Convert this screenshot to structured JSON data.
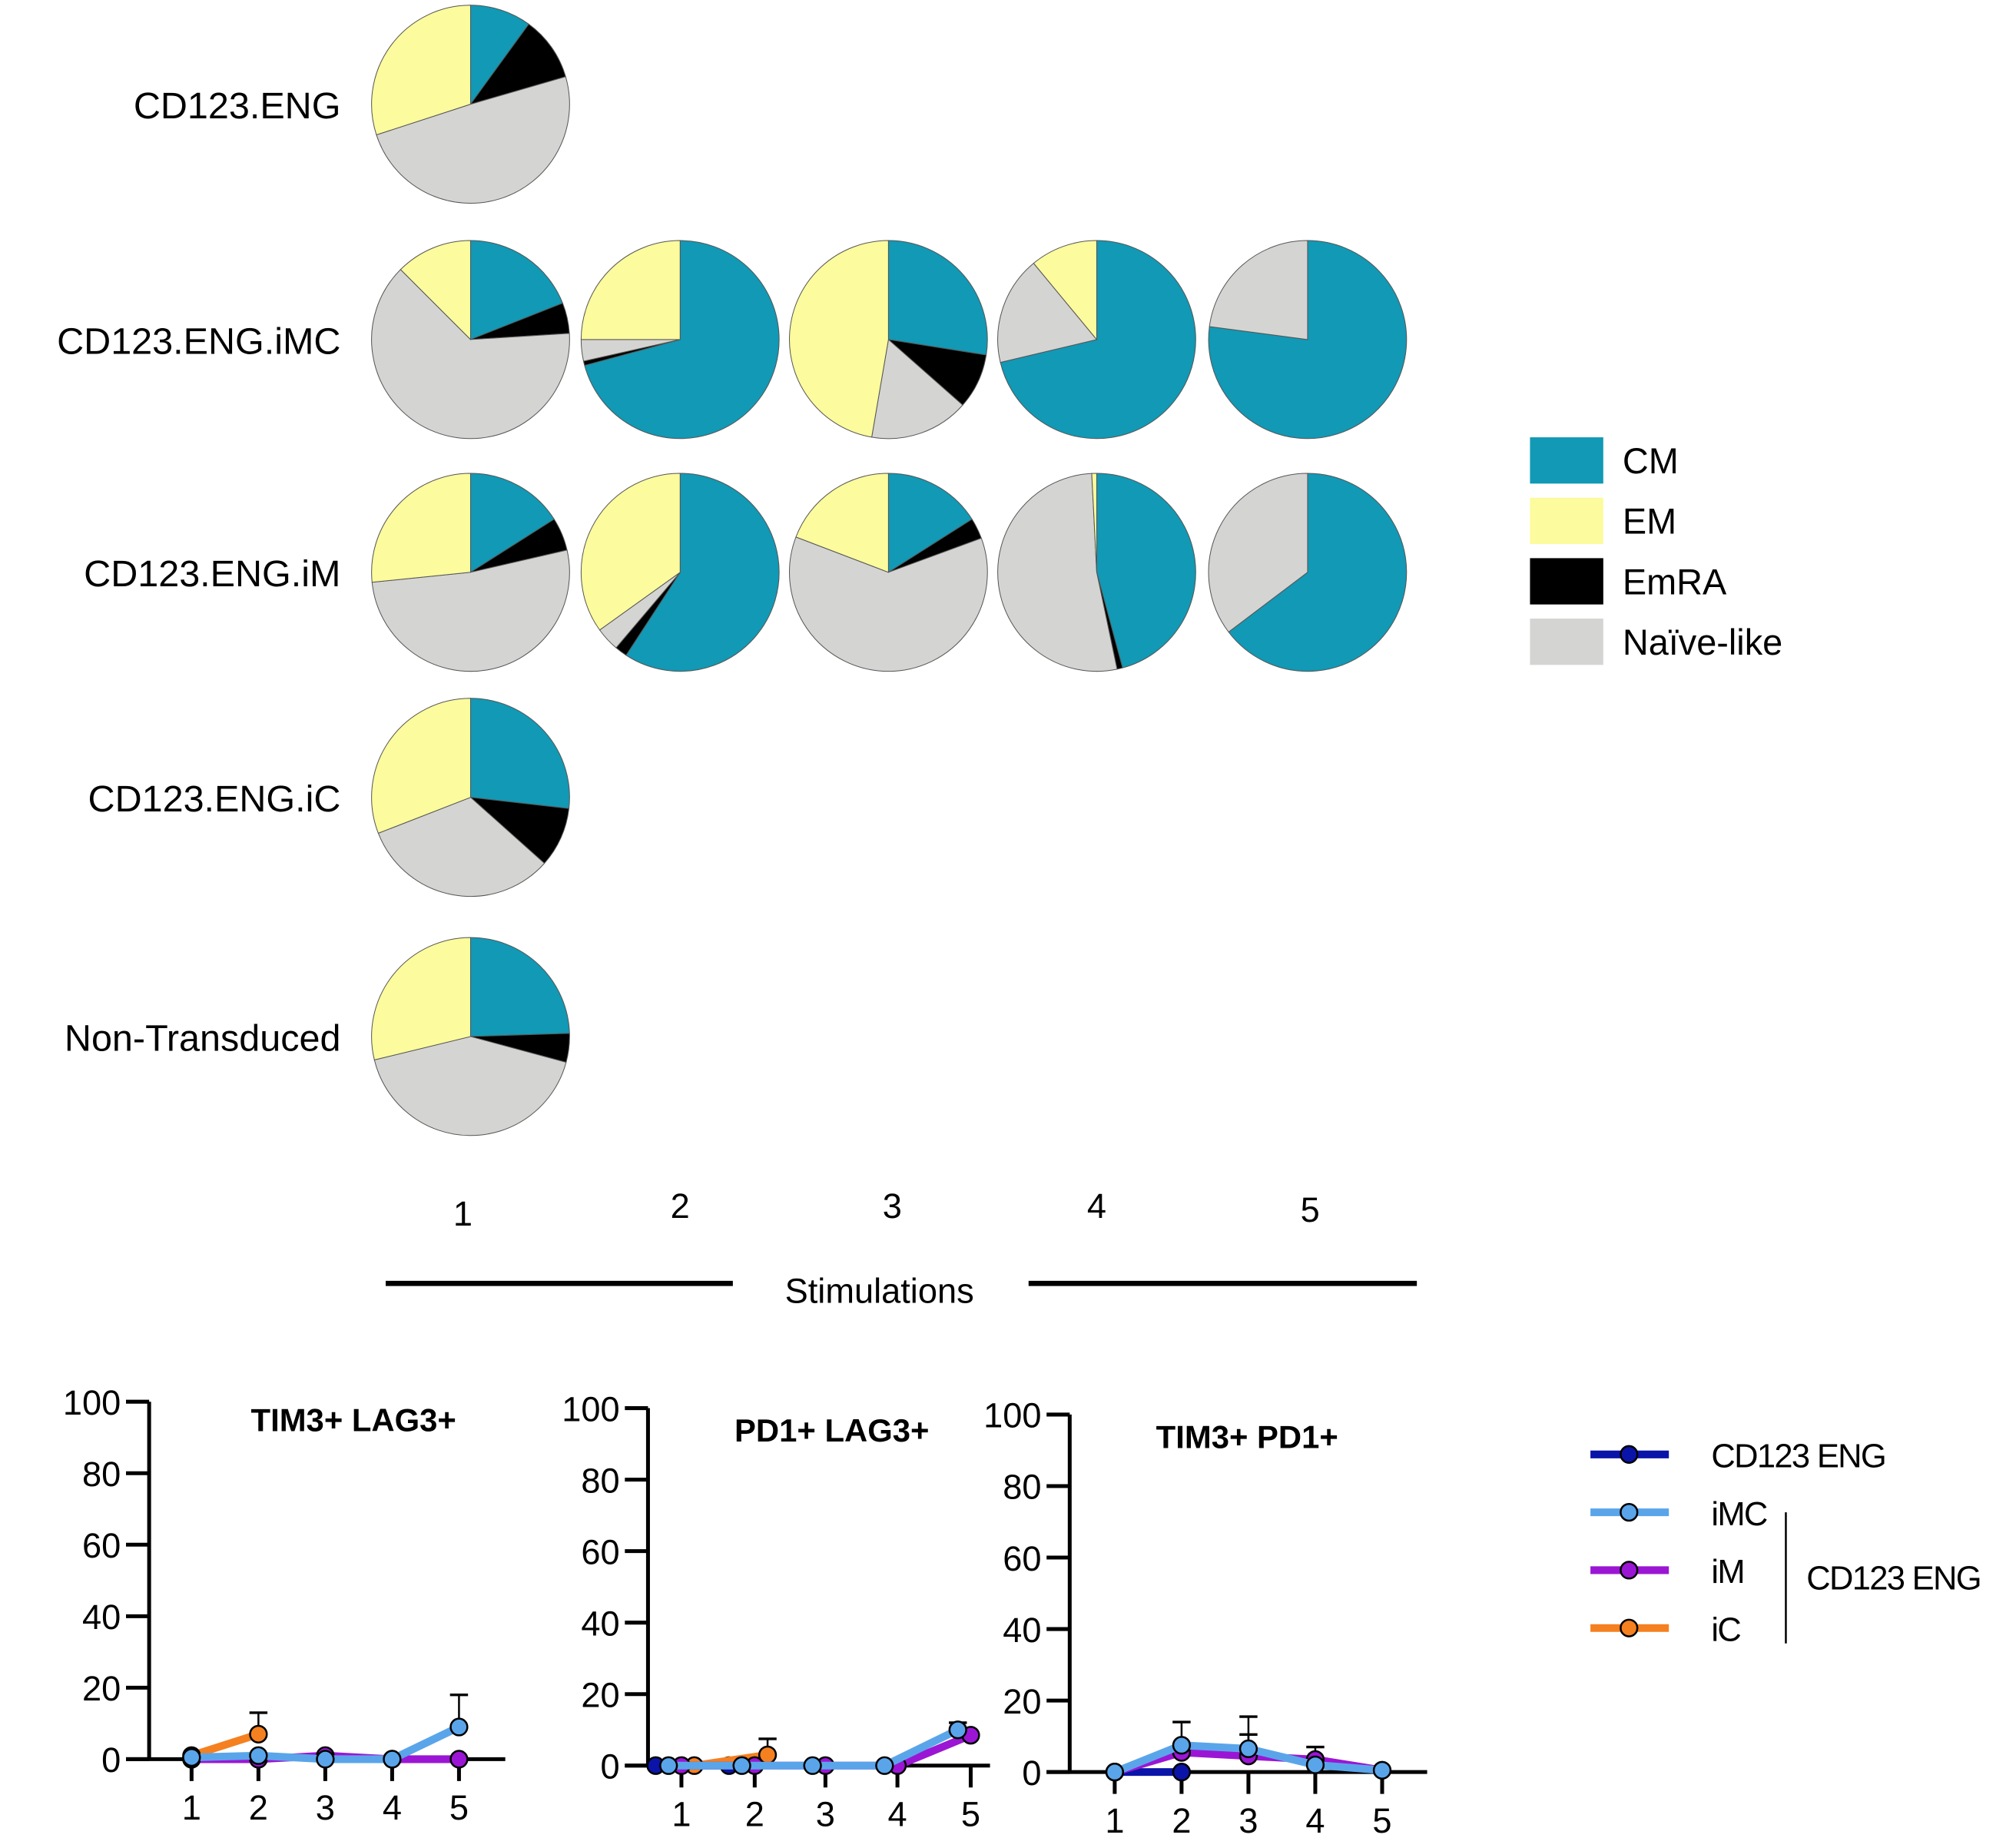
{
  "chart_data": [
    {
      "type": "pie",
      "title": "",
      "xlabel": "Stimulations",
      "stimulations": [
        "1",
        "2",
        "3",
        "4",
        "5"
      ],
      "categories": [
        "CM",
        "EmRA",
        "Naïve-like",
        "EM"
      ],
      "legend": {
        "placement": "right",
        "entries": [
          {
            "label": "CM",
            "color": "#1199b5"
          },
          {
            "label": "EM",
            "color": "#fcfb9d"
          },
          {
            "label": "EmRA",
            "color": "#000000"
          },
          {
            "label": "Naïve-like",
            "color": "#d4d4d2"
          }
        ]
      },
      "slice_colors": {
        "CM": "#1199b5",
        "EmRA": "#000000",
        "Naïve-like": "#d4d4d2",
        "EM": "#fcfb9d"
      },
      "unit": "percent",
      "rows": [
        {
          "label": "CD123.ENG",
          "pies": [
            {
              "stimulation": "1",
              "values": {
                "CM": 10,
                "EmRA": 10.5,
                "Naïve-like": 49.5,
                "EM": 30
              }
            }
          ]
        },
        {
          "label": "CD123.ENG.iMC",
          "pies": [
            {
              "stimulation": "1",
              "values": {
                "CM": 19,
                "EmRA": 5,
                "Naïve-like": 63.5,
                "EM": 12.5
              }
            },
            {
              "stimulation": "2",
              "values": {
                "CM": 70.8,
                "EmRA": 0.7,
                "Naïve-like": 3.5,
                "EM": 25
              }
            },
            {
              "stimulation": "3",
              "values": {
                "CM": 27.5,
                "EmRA": 9,
                "Naïve-like": 16.2,
                "EM": 47.3
              }
            },
            {
              "stimulation": "4",
              "values": {
                "CM": 71.3,
                "EmRA": 0,
                "Naïve-like": 17.7,
                "EM": 11
              }
            },
            {
              "stimulation": "5",
              "values": {
                "CM": 77.1,
                "EmRA": 0,
                "Naïve-like": 22.9,
                "EM": 0
              }
            }
          ]
        },
        {
          "label": "CD123.ENG.iM",
          "pies": [
            {
              "stimulation": "1",
              "values": {
                "CM": 16,
                "EmRA": 5.4,
                "Naïve-like": 52,
                "EM": 26.6
              }
            },
            {
              "stimulation": "2",
              "values": {
                "CM": 59.2,
                "EmRA": 2,
                "Naïve-like": 3.9,
                "EM": 34.9
              }
            },
            {
              "stimulation": "3",
              "values": {
                "CM": 16,
                "EmRA": 3.4,
                "Naïve-like": 61.4,
                "EM": 19.2
              }
            },
            {
              "stimulation": "4",
              "values": {
                "CM": 45.8,
                "EmRA": 0.9,
                "Naïve-like": 52.5,
                "EM": 0.8
              }
            },
            {
              "stimulation": "5",
              "values": {
                "CM": 64.7,
                "EmRA": 0,
                "Naïve-like": 35.3,
                "EM": 0
              }
            }
          ]
        },
        {
          "label": "CD123.ENG.iC",
          "pies": [
            {
              "stimulation": "1",
              "values": {
                "CM": 26.8,
                "EmRA": 9.8,
                "Naïve-like": 32.5,
                "EM": 30.9
              }
            }
          ]
        },
        {
          "label": "Non-Transduced",
          "pies": [
            {
              "stimulation": "1",
              "values": {
                "CM": 24.5,
                "EmRA": 4.7,
                "Naïve-like": 42,
                "EM": 28.8
              }
            }
          ]
        }
      ]
    },
    {
      "type": "line",
      "title": "TIM3+ LAG3+",
      "xlabel": "",
      "ylabel": "",
      "x": [
        1,
        2,
        3,
        4,
        5
      ],
      "xticks": [
        "1",
        "2",
        "3",
        "4",
        "5"
      ],
      "yticks": [
        "0",
        "20",
        "40",
        "60",
        "80",
        "100"
      ],
      "ylim": [
        0,
        100
      ],
      "grid": false,
      "series": [
        {
          "name": "CD123 ENG",
          "x": [
            1,
            2
          ],
          "values": [
            0,
            0
          ],
          "err": [
            0,
            0
          ]
        },
        {
          "name": "iMC",
          "x": [
            1,
            2,
            3,
            4,
            5
          ],
          "values": [
            0.5,
            1,
            0,
            0,
            9
          ],
          "err": [
            0,
            0,
            0,
            0,
            9
          ]
        },
        {
          "name": "iM",
          "x": [
            1,
            2,
            3,
            4,
            5
          ],
          "values": [
            0,
            0,
            1,
            0,
            0
          ],
          "err": [
            0,
            0,
            0,
            0,
            0
          ]
        },
        {
          "name": "iC",
          "x": [
            1,
            2
          ],
          "values": [
            1,
            7
          ],
          "err": [
            0,
            6
          ]
        }
      ]
    },
    {
      "type": "line",
      "title": "PD1+  LAG3+",
      "xlabel": "",
      "ylabel": "",
      "x": [
        1,
        2,
        3,
        4,
        5
      ],
      "xticks": [
        "1",
        "2",
        "3",
        "4",
        "5"
      ],
      "yticks": [
        "0",
        "20",
        "40",
        "60",
        "80",
        "100"
      ],
      "ylim": [
        0,
        100
      ],
      "grid": false,
      "series": [
        {
          "name": "CD123 ENG",
          "x": [
            1,
            2
          ],
          "values": [
            0,
            0
          ],
          "err": [
            0,
            0
          ]
        },
        {
          "name": "iMC",
          "x": [
            1,
            2,
            3,
            4,
            5
          ],
          "values": [
            0,
            0,
            0,
            0,
            10
          ],
          "err": [
            0,
            0,
            0,
            0,
            2
          ]
        },
        {
          "name": "iM",
          "x": [
            1,
            2,
            3,
            4,
            5
          ],
          "values": [
            0,
            0,
            0,
            0,
            8.5
          ],
          "err": [
            0,
            0,
            0,
            0,
            0
          ]
        },
        {
          "name": "iC",
          "x": [
            1,
            2
          ],
          "values": [
            0,
            3
          ],
          "err": [
            0,
            4.5
          ]
        }
      ]
    },
    {
      "type": "line",
      "title": "TIM3+ PD1+",
      "xlabel": "",
      "ylabel": "",
      "x": [
        1,
        2,
        3,
        4,
        5
      ],
      "xticks": [
        "1",
        "2",
        "3",
        "4",
        "5"
      ],
      "yticks": [
        "0",
        "20",
        "40",
        "60",
        "80",
        "100"
      ],
      "ylim": [
        0,
        100
      ],
      "grid": false,
      "series": [
        {
          "name": "CD123 ENG",
          "x": [
            1,
            2
          ],
          "values": [
            0,
            0
          ],
          "err": [
            0,
            0
          ]
        },
        {
          "name": "iMC",
          "x": [
            1,
            2,
            3,
            4,
            5
          ],
          "values": [
            0,
            7.5,
            6.5,
            2,
            0.5
          ],
          "err": [
            0,
            6.5,
            9,
            0,
            0
          ]
        },
        {
          "name": "iM",
          "x": [
            1,
            2,
            3,
            4,
            5
          ],
          "values": [
            0,
            5.5,
            4.5,
            3.5,
            0.5
          ],
          "err": [
            0,
            0,
            6,
            3.5,
            0
          ]
        },
        {
          "name": "iC",
          "x": [],
          "values": [],
          "err": []
        }
      ]
    }
  ],
  "line_legend": {
    "placement": "right",
    "entries": [
      {
        "label": "CD123 ENG",
        "color": "#0b14a8"
      },
      {
        "label": "iMC",
        "color": "#5aa5ea"
      },
      {
        "label": "iM",
        "color": "#9b16d4"
      },
      {
        "label": "iC",
        "color": "#f58020"
      }
    ],
    "group_label": "CD123 ENG"
  },
  "stimulations_label": "Stimulations"
}
